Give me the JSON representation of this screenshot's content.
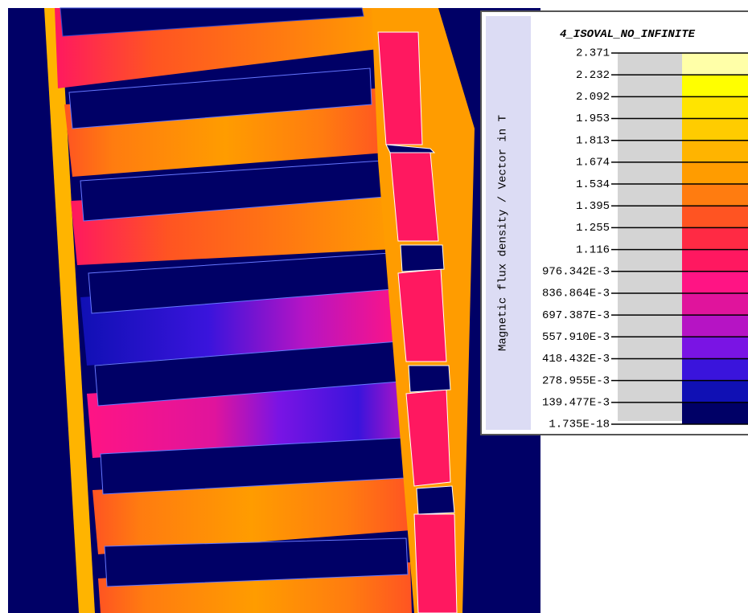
{
  "legend": {
    "title": "4_ISOVAL_NO_INFINITE",
    "quantity": "Magnetic flux density / Vector in T",
    "levels": [
      "2.371",
      "2.232",
      "2.092",
      "1.953",
      "1.813",
      "1.674",
      "1.534",
      "1.395",
      "1.255",
      "1.116",
      "976.342E-3",
      "836.864E-3",
      "697.387E-3",
      "557.910E-3",
      "418.432E-3",
      "278.955E-3",
      "139.477E-3",
      "1.735E-18"
    ],
    "colors": [
      "#ffffa8",
      "#ffff00",
      "#ffe400",
      "#ffcc00",
      "#ffb400",
      "#ff9c00",
      "#ff7c10",
      "#ff5422",
      "#ff2a44",
      "#ff1860",
      "#ff1484",
      "#e0149c",
      "#b614c4",
      "#7a14e4",
      "#3a14dc",
      "#1010b4",
      "#000066"
    ]
  }
}
